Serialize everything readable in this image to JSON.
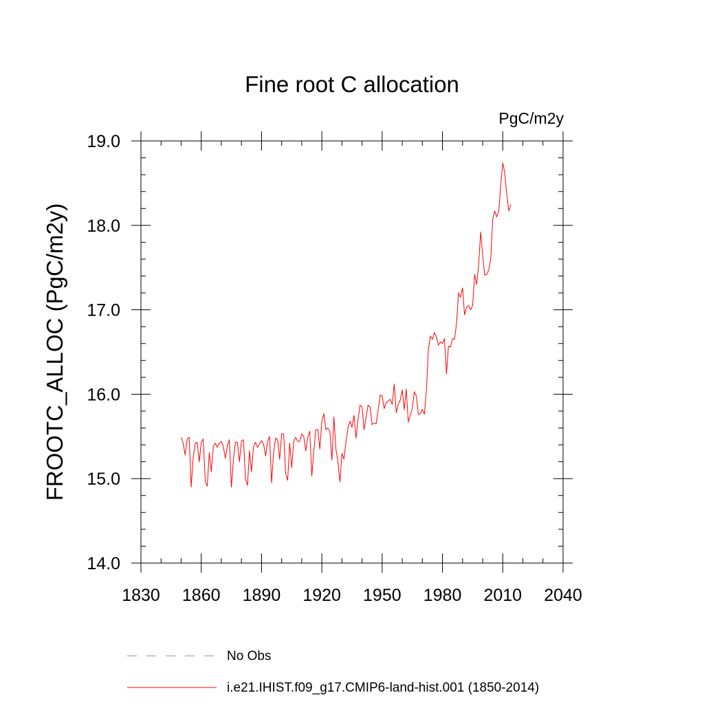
{
  "chart_data": {
    "type": "line",
    "title": "Fine root C allocation",
    "units_label": "PgC/m2y",
    "ylabel": "FROOTC_ALLOC  (PgC/m2y)",
    "xlabel": "",
    "xlim": [
      1830,
      2040
    ],
    "ylim": [
      14.0,
      19.0
    ],
    "x_ticks": [
      "1830",
      "1860",
      "1890",
      "1920",
      "1950",
      "1980",
      "2010",
      "2040"
    ],
    "y_ticks": [
      "14.0",
      "15.0",
      "16.0",
      "17.0",
      "18.0",
      "19.0"
    ],
    "grid": false,
    "legend_position": "bottom",
    "series": [
      {
        "name": "No Obs",
        "color": "#8a86c8",
        "style": "dashed",
        "x": [],
        "y": []
      },
      {
        "name": "i.e21.IHIST.f09_g17.CMIP6-land-hist.001 (1850-2014)",
        "color": "#ff0000",
        "style": "solid",
        "x_start": 1850,
        "x_step": 1,
        "y": [
          15.49,
          15.42,
          15.28,
          15.47,
          15.49,
          14.9,
          15.25,
          15.42,
          15.43,
          15.2,
          15.43,
          15.47,
          14.97,
          14.91,
          15.31,
          15.08,
          15.38,
          15.42,
          15.37,
          15.42,
          15.44,
          15.38,
          15.24,
          15.39,
          15.46,
          14.9,
          15.22,
          15.43,
          15.43,
          15.2,
          15.45,
          15.46,
          15.0,
          14.92,
          15.33,
          15.08,
          15.38,
          15.43,
          15.37,
          15.41,
          15.45,
          15.41,
          15.27,
          15.44,
          15.5,
          14.95,
          15.31,
          15.48,
          15.46,
          15.23,
          15.53,
          15.53,
          15.06,
          14.98,
          15.42,
          15.13,
          15.44,
          15.49,
          15.44,
          15.44,
          15.53,
          15.5,
          15.33,
          15.49,
          15.56,
          15.03,
          15.33,
          15.58,
          15.58,
          15.35,
          15.68,
          15.77,
          15.58,
          15.6,
          15.56,
          15.22,
          15.73,
          15.35,
          15.2,
          14.96,
          15.3,
          15.23,
          15.44,
          15.6,
          15.68,
          15.61,
          15.75,
          15.48,
          15.7,
          15.87,
          15.85,
          15.58,
          15.73,
          15.87,
          15.85,
          15.64,
          15.66,
          15.65,
          15.81,
          15.99,
          15.98,
          15.83,
          15.9,
          15.92,
          15.94,
          15.88,
          16.12,
          15.78,
          15.88,
          15.93,
          16.05,
          15.82,
          16.06,
          15.67,
          15.75,
          15.83,
          16.03,
          15.98,
          15.76,
          15.77,
          15.82,
          15.76,
          16.05,
          16.53,
          16.69,
          16.65,
          16.73,
          16.68,
          16.58,
          16.62,
          16.6,
          16.66,
          16.24,
          16.57,
          16.56,
          16.66,
          16.65,
          16.84,
          17.2,
          17.15,
          17.26,
          16.94,
          17.03,
          17.05,
          17.0,
          17.05,
          17.42,
          17.3,
          17.53,
          17.92,
          17.65,
          17.41,
          17.42,
          17.47,
          17.6,
          18.07,
          18.17,
          18.1,
          18.17,
          18.48,
          18.74,
          18.62,
          18.36,
          18.17,
          18.25
        ]
      }
    ]
  }
}
